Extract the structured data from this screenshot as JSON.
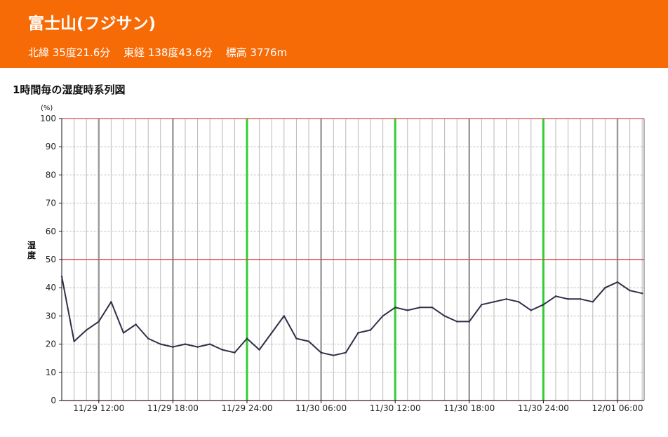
{
  "header": {
    "title": "富士山(フジサン)",
    "latitude": "北緯 35度21.6分",
    "longitude": "東経 138度43.6分",
    "elevation": "標高 3776m"
  },
  "colors": {
    "header_bg": "#f76b07",
    "series": "#2e3047",
    "threshold": "#d84a4a",
    "day_boundary": "#33cc33",
    "six_hour": "#9a9a9a",
    "hour_grid": "#b8b8b8"
  },
  "chart_data": {
    "type": "line",
    "title": "1時間毎の湿度時系列図",
    "ylabel": "湿度",
    "yunit": "(%)",
    "ylim": [
      0,
      100
    ],
    "yticks": [
      0,
      10,
      20,
      30,
      40,
      50,
      60,
      70,
      80,
      90,
      100
    ],
    "grid": true,
    "x_start": "11/29 09:00",
    "x_step": "1 hour",
    "xticks": [
      {
        "hour": 3,
        "label": "11/29 12:00"
      },
      {
        "hour": 9,
        "label": "11/29 18:00"
      },
      {
        "hour": 15,
        "label": "11/29 24:00"
      },
      {
        "hour": 21,
        "label": "11/30 06:00"
      },
      {
        "hour": 27,
        "label": "11/30 12:00"
      },
      {
        "hour": 33,
        "label": "11/30 18:00"
      },
      {
        "hour": 39,
        "label": "11/30 24:00"
      },
      {
        "hour": 45,
        "label": "12/01 06:00"
      }
    ],
    "day_boundaries": [
      15,
      27,
      39
    ],
    "reference_lines": [
      50,
      100,
      0
    ],
    "series": [
      {
        "values": [
          44,
          21,
          25,
          28,
          35,
          24,
          27,
          22,
          20,
          19,
          20,
          19,
          20,
          18,
          17,
          22,
          18,
          24,
          30,
          22,
          21,
          17,
          16,
          17,
          24,
          25,
          30,
          33,
          32,
          33,
          33,
          30,
          28,
          28,
          34,
          35,
          36,
          35,
          32,
          34,
          37,
          36,
          36,
          35,
          40,
          42,
          39,
          38
        ]
      }
    ]
  }
}
